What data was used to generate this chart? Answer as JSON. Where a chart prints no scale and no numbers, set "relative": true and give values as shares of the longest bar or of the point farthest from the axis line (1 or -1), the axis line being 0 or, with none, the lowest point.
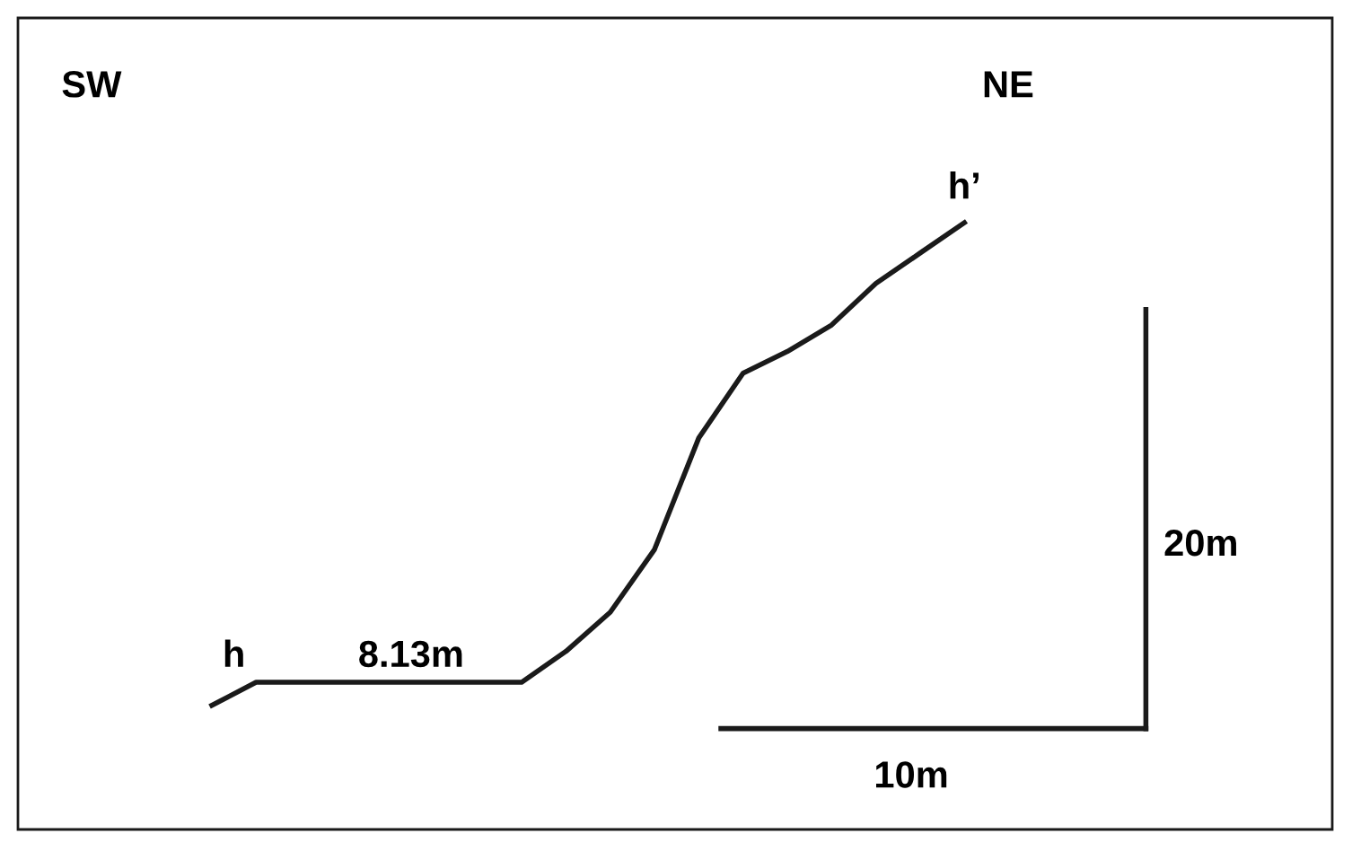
{
  "chart_data": {
    "type": "line",
    "relative": true,
    "marker": "none",
    "line_style": "solid",
    "categories": [
      null,
      null,
      null,
      null,
      null,
      null,
      null,
      null,
      null,
      null,
      null,
      null,
      null,
      null,
      null,
      null,
      null,
      null
    ],
    "series": [
      {
        "color": "#1a1a1a",
        "values": [
          0,
          0.048,
          0.048,
          0.048,
          0.048,
          0.048,
          0.048,
          0.048,
          0.112,
          0.193,
          0.323,
          0.554,
          0.688,
          0.733,
          0.788,
          0.874,
          0.937,
          1
        ]
      }
    ],
    "annotations": [
      "SW",
      "NE",
      "h",
      "h’",
      "8.13m",
      "20m",
      "10m"
    ]
  }
}
